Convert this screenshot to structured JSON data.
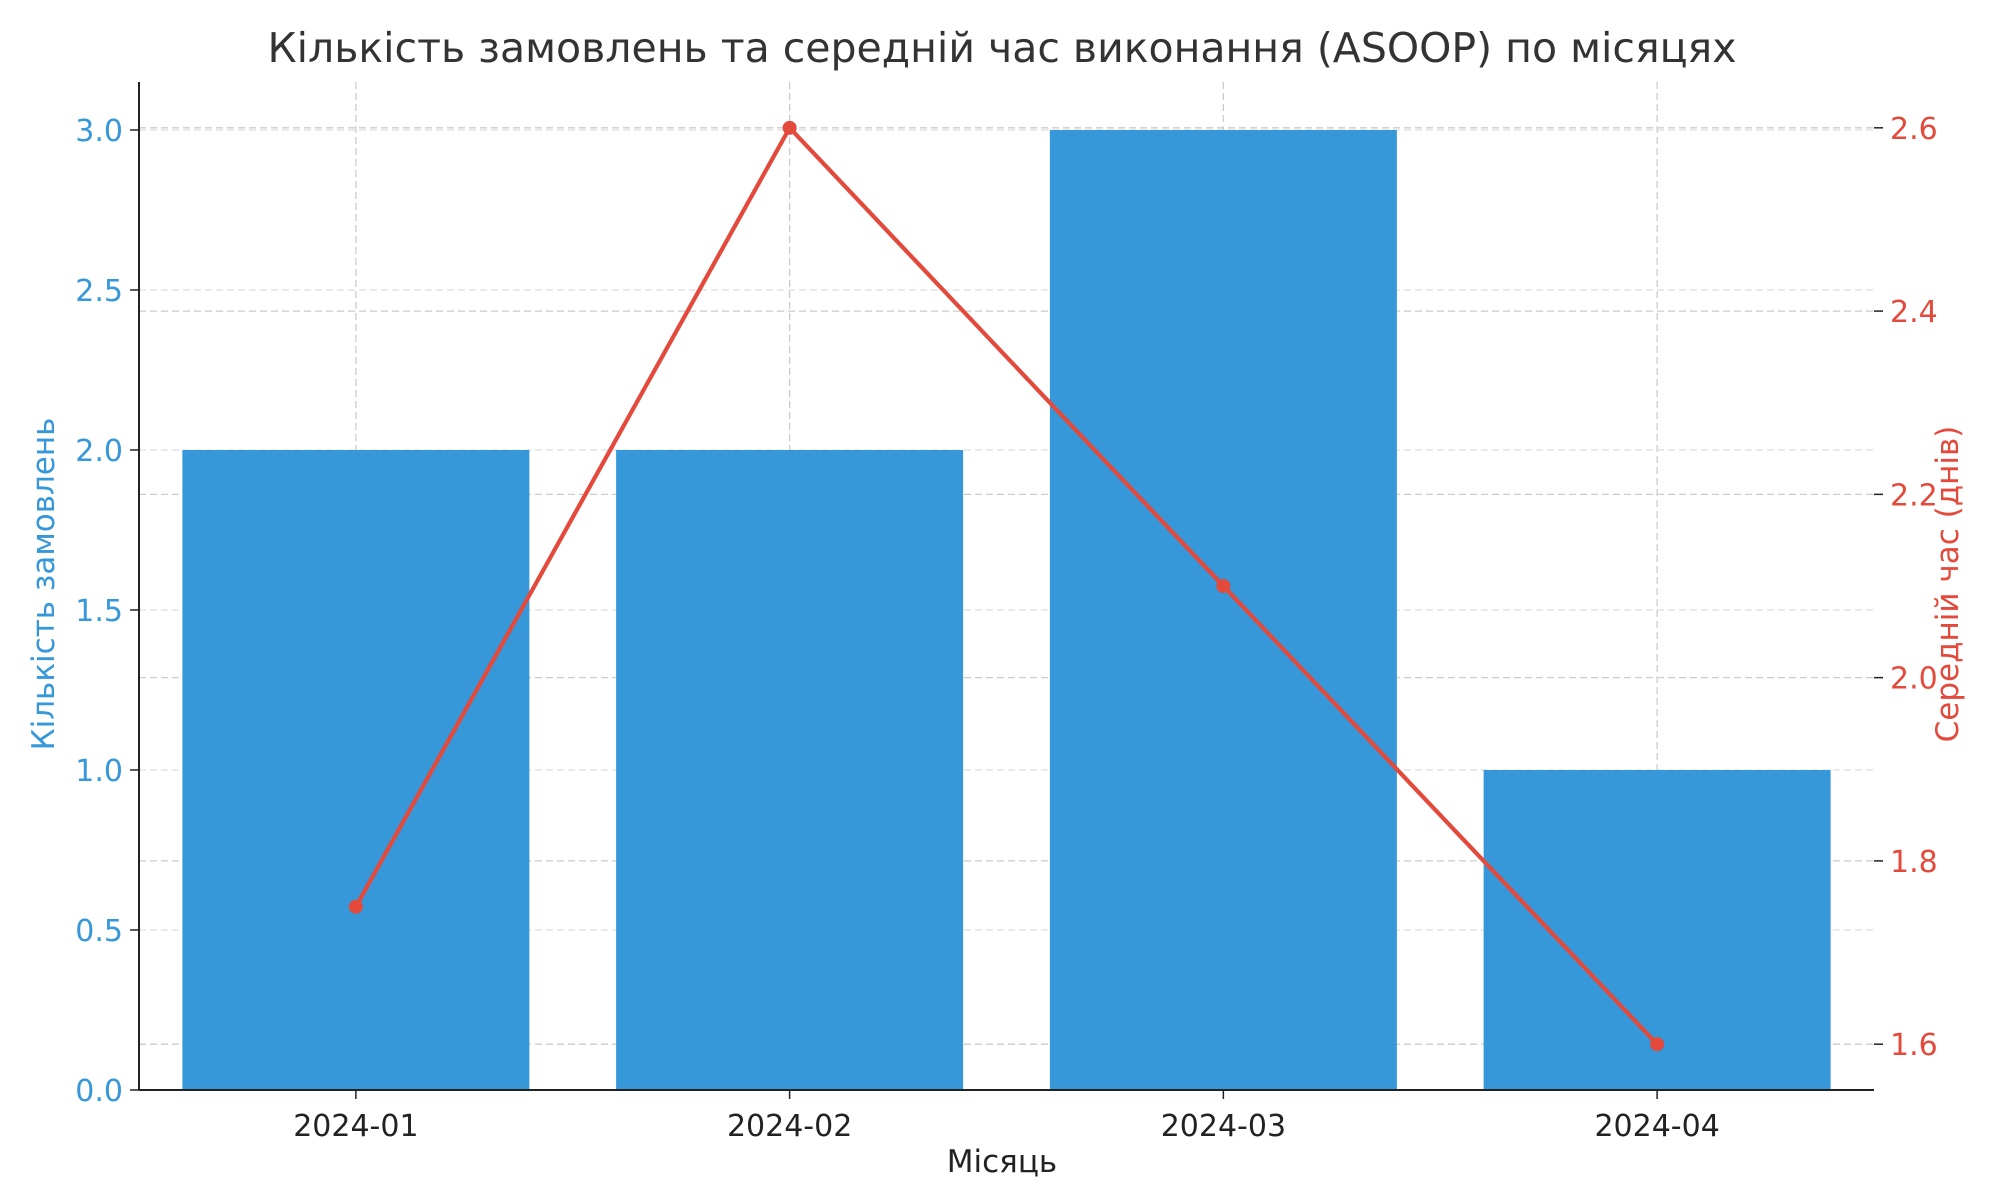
{
  "chart_data": {
    "type": "bar+line",
    "title": "Кількість замовлень та середній час виконання (ASOOP) по місяцях",
    "xlabel": "Місяць",
    "ylabel_left": "Кількість замовлень",
    "ylabel_right": "Середній час (днів)",
    "categories": [
      "2024-01",
      "2024-02",
      "2024-03",
      "2024-04"
    ],
    "bar_series": {
      "values": [
        2,
        2,
        3,
        1
      ],
      "color": "#3697d9"
    },
    "line_series": {
      "values": [
        1.75,
        2.6,
        2.1,
        1.6
      ],
      "color": "#e34a3c"
    },
    "y_left": {
      "lim": [
        0,
        3.15
      ],
      "ticks": [
        "0.0",
        "0.5",
        "1.0",
        "1.5",
        "2.0",
        "2.5",
        "3.0"
      ],
      "color": "#3697d9"
    },
    "y_right": {
      "lim": [
        1.55,
        2.65
      ],
      "ticks": [
        "1.6",
        "1.8",
        "2.0",
        "2.2",
        "2.4",
        "2.6"
      ],
      "color": "#e34a3c"
    },
    "grid": true,
    "legend": "none"
  }
}
